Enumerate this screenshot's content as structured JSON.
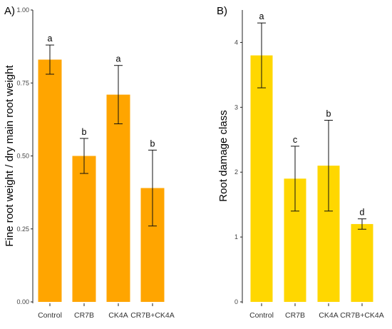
{
  "chart_data": [
    {
      "type": "bar",
      "panel_label": "A)",
      "categories": [
        "Control",
        "CR7B",
        "CK4A",
        "CR7B+CK4A"
      ],
      "values": [
        0.83,
        0.5,
        0.71,
        0.39
      ],
      "error_low": [
        0.78,
        0.44,
        0.61,
        0.26
      ],
      "error_high": [
        0.88,
        0.56,
        0.81,
        0.52
      ],
      "significance": [
        "a",
        "b",
        "a",
        "b"
      ],
      "xlabel": "",
      "ylabel": "Fine root weight / dry main root weight",
      "ylim": [
        0,
        1.0
      ],
      "yticks": [
        "0.00",
        "0.25",
        "0.50",
        "0.75",
        "1.00"
      ],
      "ytick_values": [
        0,
        0.25,
        0.5,
        0.75,
        1.0
      ],
      "bar_color": "#FFA500",
      "grid": false
    },
    {
      "type": "bar",
      "panel_label": "B)",
      "categories": [
        "Control",
        "CR7B",
        "CK4A",
        "CR7B+CK4A"
      ],
      "values": [
        3.8,
        1.9,
        2.1,
        1.2
      ],
      "error_low": [
        3.3,
        1.4,
        1.4,
        1.12
      ],
      "error_high": [
        4.3,
        2.4,
        2.8,
        1.28
      ],
      "significance": [
        "a",
        "c",
        "b",
        "d"
      ],
      "xlabel": "",
      "ylabel": "Root damage class",
      "ylim": [
        0,
        4.5
      ],
      "yticks": [
        "0",
        "1",
        "2",
        "3",
        "4"
      ],
      "ytick_values": [
        0,
        1,
        2,
        3,
        4
      ],
      "bar_color": "#FFD700",
      "grid": false
    }
  ]
}
